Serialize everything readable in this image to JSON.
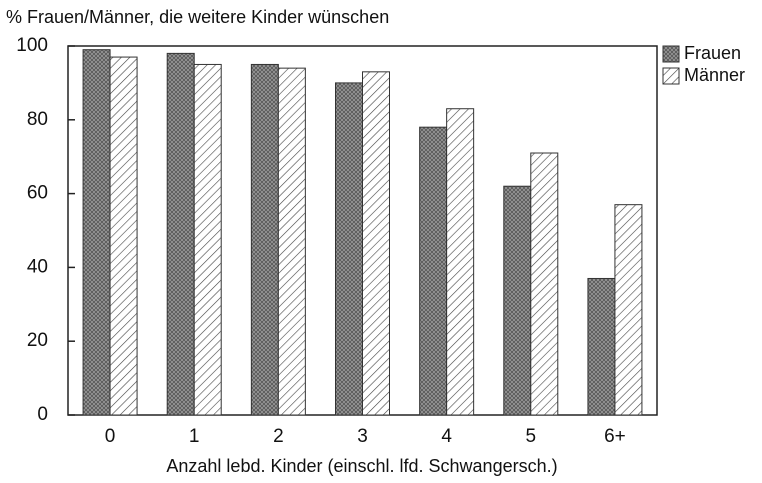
{
  "chart_data": {
    "type": "bar",
    "title": "% Frauen/Männer, die weitere Kinder wünschen",
    "x_label": "Anzahl lebd. Kinder (einschl. lfd. Schwangersch.)",
    "categories": [
      "0",
      "1",
      "2",
      "3",
      "4",
      "5",
      "6+"
    ],
    "series": [
      {
        "name": "Frauen",
        "color": "#8a8a8a",
        "values": [
          99,
          98,
          95,
          90,
          78,
          62,
          37
        ]
      },
      {
        "name": "Männer",
        "color": "#ffffff",
        "values": [
          97,
          95,
          94,
          93,
          83,
          71,
          57
        ]
      }
    ],
    "ylim": [
      0,
      100
    ],
    "yticks": [
      0,
      20,
      40,
      60,
      80,
      100
    ],
    "legend": "right"
  }
}
